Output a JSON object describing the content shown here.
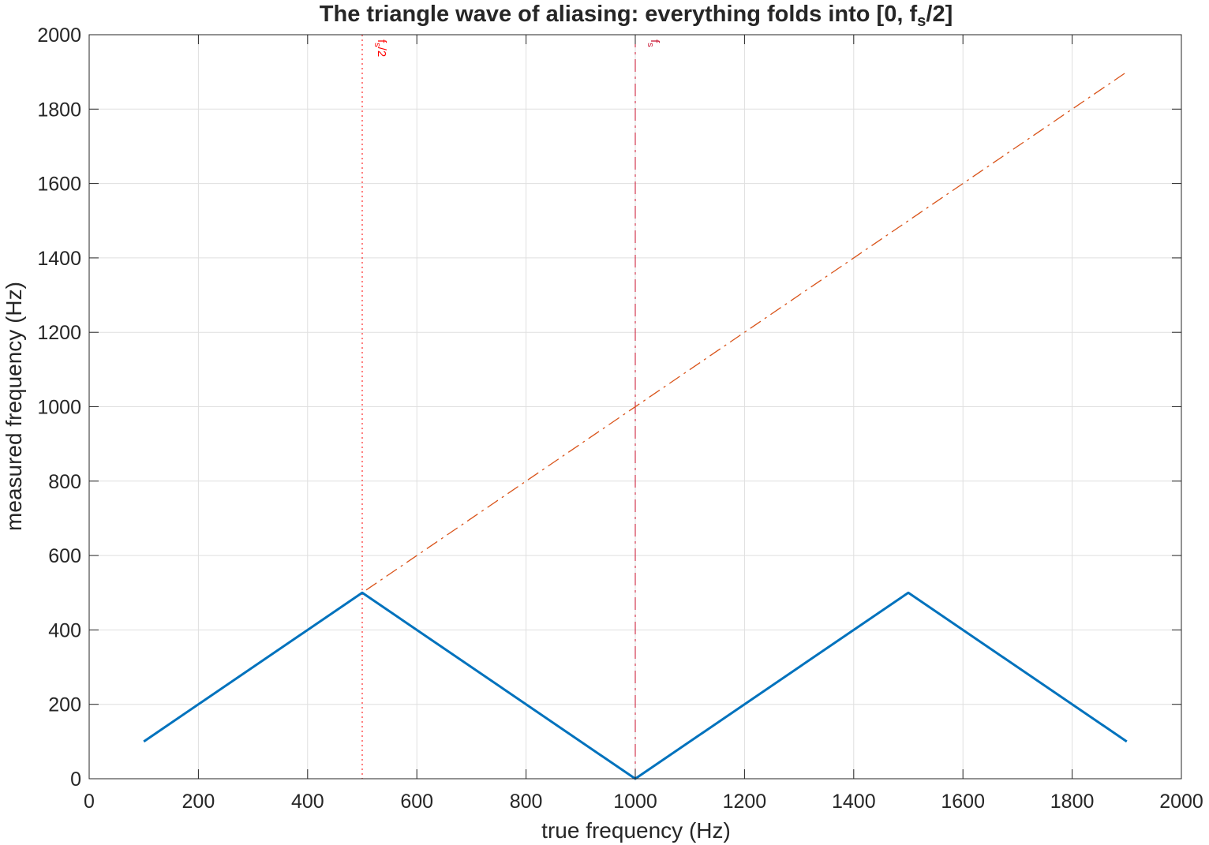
{
  "chart_data": {
    "type": "line",
    "title": {
      "main": "The triangle wave of aliasing: everything folds into [0, f",
      "sub": "s",
      "end": "/2]"
    },
    "xlabel": "true frequency (Hz)",
    "ylabel": "measured frequency (Hz)",
    "xlim": [
      0,
      2000
    ],
    "ylim": [
      0,
      2000
    ],
    "xticks": [
      0,
      200,
      400,
      600,
      800,
      1000,
      1200,
      1400,
      1600,
      1800,
      2000
    ],
    "yticks": [
      0,
      200,
      400,
      600,
      800,
      1000,
      1200,
      1400,
      1600,
      1800,
      2000
    ],
    "grid": true,
    "series": [
      {
        "style": "solid",
        "color": "#0072BD",
        "x": [
          100,
          500,
          1000,
          1500,
          1900
        ],
        "y": [
          100,
          500,
          0,
          500,
          100
        ]
      },
      {
        "style": "dashdot",
        "color": "#D95319",
        "x": [
          100,
          1900
        ],
        "y": [
          100,
          1900
        ]
      }
    ],
    "vlines": [
      {
        "x": 500,
        "style": "dotted",
        "color": "#FF0000",
        "label_main": "f",
        "label_sub": "s",
        "label_end": "/2"
      },
      {
        "x": 1000,
        "style": "dashdot",
        "color": "#C8102E",
        "label_main": "f",
        "label_sub": "s",
        "label_end": ""
      }
    ]
  }
}
